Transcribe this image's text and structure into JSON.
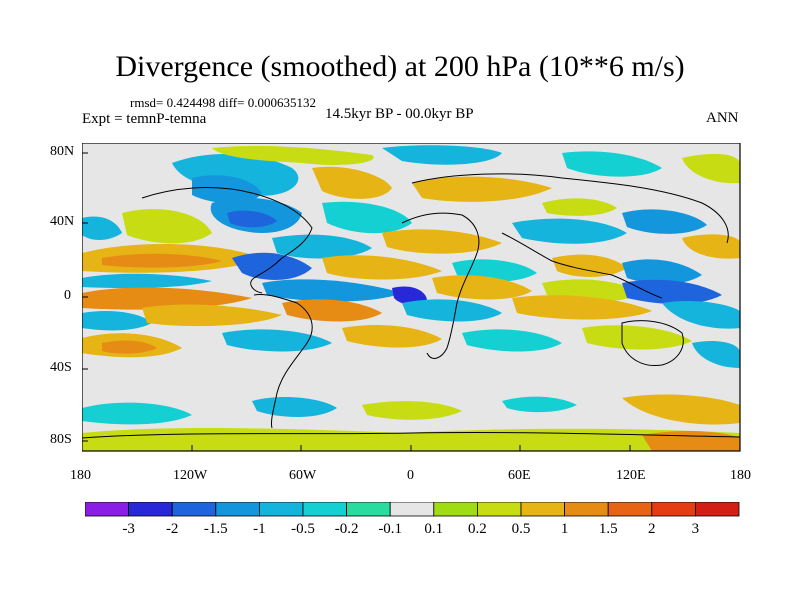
{
  "header": {
    "title": "Divergence (smoothed) at 200 hPa (10**6 m/s)",
    "stats": "rmsd= 0.424498 diff= 0.000635132",
    "experiment": "Expt = temnP-temna",
    "period": "14.5kyr BP - 00.0kyr BP",
    "season": "ANN"
  },
  "axes": {
    "y_ticks": [
      "80N",
      "40N",
      "0",
      "40S",
      "80S"
    ],
    "x_ticks": [
      "180",
      "120W",
      "60W",
      "0",
      "60E",
      "120E",
      "180"
    ]
  },
  "colorbar": {
    "labels": [
      "-3",
      "-2",
      "-1.5",
      "-1",
      "-0.5",
      "-0.2",
      "-0.1",
      "0.1",
      "0.2",
      "0.5",
      "1",
      "1.5",
      "2",
      "3"
    ],
    "colors": [
      "#8a1ee6",
      "#2828d8",
      "#1e64dc",
      "#1496dc",
      "#14b4dc",
      "#14d0d2",
      "#28dca0",
      "#e6e6e6",
      "#a0dc14",
      "#c8dc14",
      "#e6b414",
      "#e68c14",
      "#e66414",
      "#e63c14",
      "#d21e14"
    ]
  },
  "field_colors": {
    "background": "#e6e6e6",
    "coast": "#000000"
  }
}
